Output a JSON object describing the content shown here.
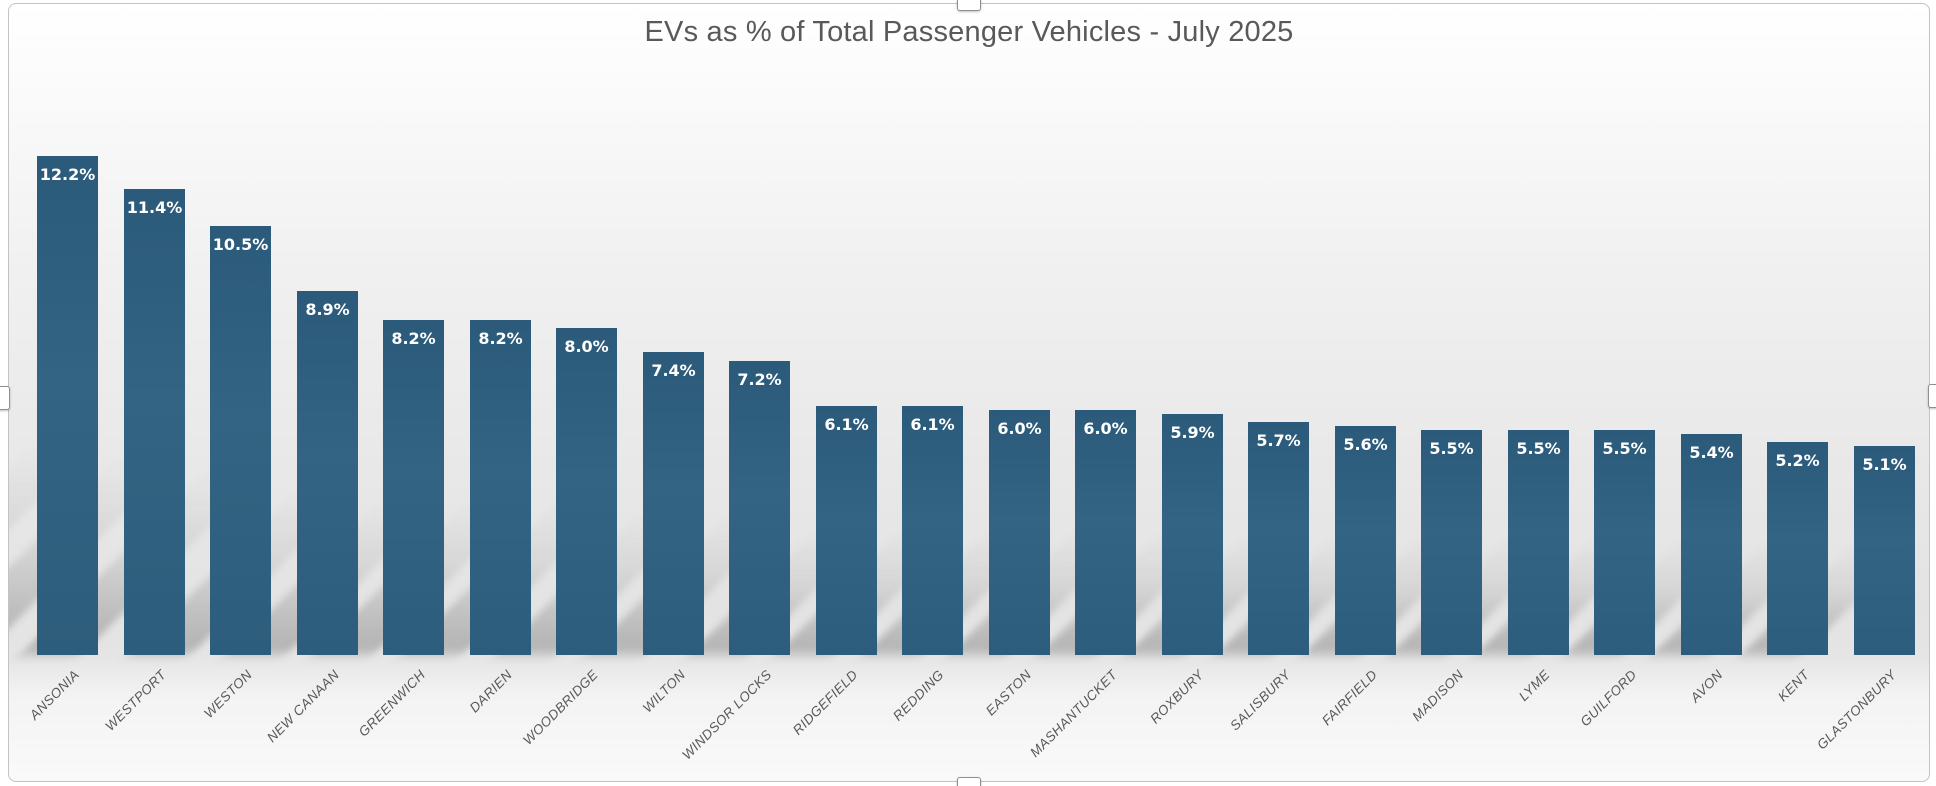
{
  "chart_data": {
    "type": "bar",
    "title": "EVs as % of Total Passenger Vehicles - July 2025",
    "categories": [
      "ANSONIA",
      "WESTPORT",
      "WESTON",
      "NEW CANAAN",
      "GREENWICH",
      "DARIEN",
      "WOODBRIDGE",
      "WILTON",
      "WINDSOR LOCKS",
      "RIDGEFIELD",
      "REDDING",
      "EASTON",
      "MASHANTUCKET",
      "ROXBURY",
      "SALISBURY",
      "FAIRFIELD",
      "MADISON",
      "LYME",
      "GUILFORD",
      "AVON",
      "KENT",
      "GLASTONBURY"
    ],
    "values": [
      12.2,
      11.4,
      10.5,
      8.9,
      8.2,
      8.2,
      8.0,
      7.4,
      7.2,
      6.1,
      6.1,
      6.0,
      6.0,
      5.9,
      5.7,
      5.6,
      5.5,
      5.5,
      5.5,
      5.4,
      5.2,
      5.1
    ],
    "labels": [
      "12.2%",
      "11.4%",
      "10.5%",
      "8.9%",
      "8.2%",
      "8.2%",
      "8.0%",
      "7.4%",
      "7.2%",
      "6.1%",
      "6.1%",
      "6.0%",
      "6.0%",
      "5.9%",
      "5.7%",
      "5.6%",
      "5.5%",
      "5.5%",
      "5.5%",
      "5.4%",
      "5.2%",
      "5.1%"
    ],
    "xlabel": "",
    "ylabel": "",
    "ylim": [
      0,
      12.8
    ],
    "y_axis_visible": false,
    "grid": false,
    "legend": "none",
    "data_label_position": "inside-end",
    "colors": {
      "bar_fill": "#2e5f7e",
      "data_label": "#ffffff",
      "axis_label": "#595959",
      "title": "#595959",
      "background_top": "#ffffff",
      "background_middle": "#e5e5e5",
      "background_bottom": "#fafafa"
    }
  },
  "selection": {
    "handles": [
      "top-center",
      "bottom-center",
      "left-middle",
      "right-middle"
    ]
  }
}
